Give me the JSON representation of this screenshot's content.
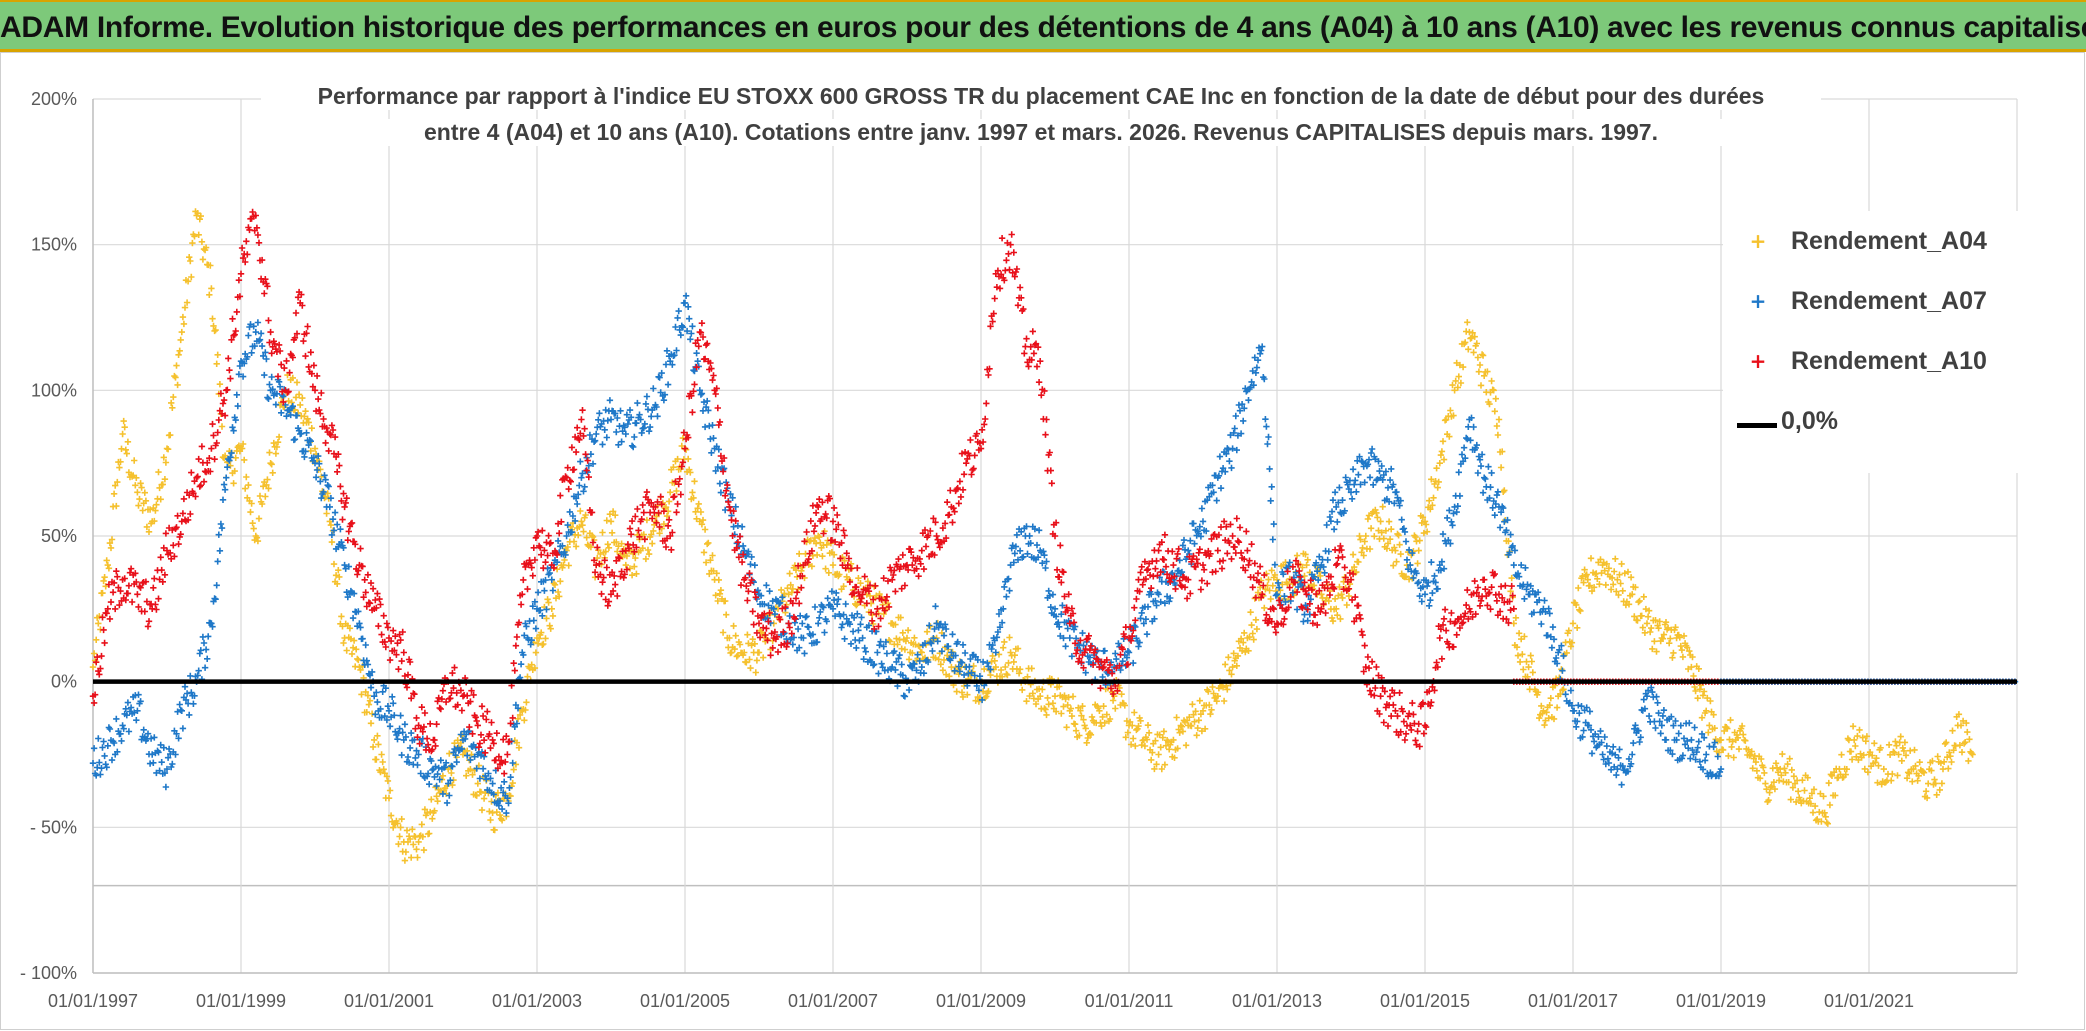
{
  "header": {
    "title": "ADAM Informe. Evolution historique des performances en euros pour des détentions de 4 ans (A04) à 10 ans (A10) avec les revenus connus capitalisés"
  },
  "colors": {
    "header_bg": "#7dc97a",
    "header_border": "#d9a300",
    "A04": "#f5c12e",
    "A07": "#1f78c8",
    "A10": "#e8101a",
    "zero_line": "#000000"
  },
  "chart_data": {
    "type": "scatter",
    "title_lines": [
      "Performance par rapport à l'indice EU STOXX 600 GROSS TR  du placement CAE Inc en fonction de la date de début pour des durées",
      "entre 4 (A04) et 10 ans (A10). Cotations entre janv. 1997 et mars. 2026. Revenus CAPITALISES depuis mars. 1997."
    ],
    "xlabel": "",
    "ylabel": "",
    "x_range": [
      1997.0,
      2023.0
    ],
    "x_ticks": [
      {
        "value": 1997,
        "label": "01/01/1997"
      },
      {
        "value": 1999,
        "label": "01/01/1999"
      },
      {
        "value": 2001,
        "label": "01/01/2001"
      },
      {
        "value": 2003,
        "label": "01/01/2003"
      },
      {
        "value": 2005,
        "label": "01/01/2005"
      },
      {
        "value": 2007,
        "label": "01/01/2007"
      },
      {
        "value": 2009,
        "label": "01/01/2009"
      },
      {
        "value": 2011,
        "label": "01/01/2011"
      },
      {
        "value": 2013,
        "label": "01/01/2013"
      },
      {
        "value": 2015,
        "label": "01/01/2015"
      },
      {
        "value": 2017,
        "label": "01/01/2017"
      },
      {
        "value": 2019,
        "label": "01/01/2019"
      },
      {
        "value": 2021,
        "label": "01/01/2021"
      }
    ],
    "y_range": [
      -100,
      200
    ],
    "y_ticks": [
      {
        "value": 200,
        "label": "200%"
      },
      {
        "value": 150,
        "label": "150%"
      },
      {
        "value": 100,
        "label": "100%"
      },
      {
        "value": 50,
        "label": "50%"
      },
      {
        "value": 0,
        "label": "0%"
      },
      {
        "value": -50,
        "label": "- 50%"
      },
      {
        "value": -100,
        "label": "- 100%"
      }
    ],
    "extra_gridline": -70,
    "grid": true,
    "legend_position": "top-right",
    "series": [
      {
        "name": "Rendement_A04",
        "color": "#f5c12e",
        "x": [
          1997.0,
          1997.2,
          1997.4,
          1997.6,
          1997.8,
          1998.0,
          1998.2,
          1998.4,
          1998.6,
          1998.8,
          1999.0,
          1999.2,
          1999.4,
          1999.6,
          1999.8,
          2000.0,
          2000.2,
          2000.4,
          2000.6,
          2000.8,
          2001.0,
          2001.2,
          2001.4,
          2001.6,
          2001.8,
          2002.0,
          2002.2,
          2002.4,
          2002.6,
          2002.8,
          2003.0,
          2003.2,
          2003.4,
          2003.6,
          2003.8,
          2004.0,
          2004.2,
          2004.4,
          2004.6,
          2004.8,
          2005.0,
          2005.2,
          2005.4,
          2005.6,
          2005.8,
          2006.0,
          2006.2,
          2006.4,
          2006.6,
          2006.8,
          2007.0,
          2007.2,
          2007.4,
          2007.6,
          2007.8,
          2008.0,
          2008.2,
          2008.4,
          2008.6,
          2008.8,
          2009.0,
          2009.2,
          2009.4,
          2009.6,
          2009.8,
          2010.0,
          2010.2,
          2010.4,
          2010.6,
          2010.8,
          2011.0,
          2011.2,
          2011.4,
          2011.6,
          2011.8,
          2012.0,
          2012.2,
          2012.4,
          2012.6,
          2012.8,
          2013.0,
          2013.2,
          2013.4,
          2013.6,
          2013.8,
          2014.0,
          2014.2,
          2014.4,
          2014.6,
          2014.8,
          2015.0,
          2015.2,
          2015.4,
          2015.6,
          2015.8,
          2016.0,
          2016.2,
          2016.4,
          2016.6,
          2016.8,
          2017.0,
          2017.2,
          2017.4,
          2017.6,
          2017.8,
          2018.0,
          2018.2,
          2018.4,
          2018.6,
          2018.8,
          2019.0,
          2019.2,
          2019.4,
          2019.6,
          2019.8,
          2020.0,
          2020.2,
          2020.4,
          2020.6,
          2020.8,
          2021.0,
          2021.2,
          2021.4,
          2021.6,
          2021.8,
          2022.0,
          2022.2,
          2022.4
        ],
        "y": [
          5,
          40,
          85,
          65,
          55,
          80,
          120,
          160,
          135,
          70,
          80,
          50,
          75,
          100,
          95,
          80,
          55,
          15,
          5,
          -20,
          -40,
          -55,
          -55,
          -45,
          -30,
          -25,
          -35,
          -45,
          -40,
          -10,
          15,
          25,
          45,
          55,
          40,
          55,
          40,
          45,
          55,
          65,
          80,
          55,
          35,
          15,
          10,
          10,
          20,
          30,
          40,
          50,
          40,
          35,
          30,
          25,
          20,
          15,
          10,
          15,
          5,
          0,
          0,
          5,
          10,
          0,
          -5,
          -5,
          -10,
          -15,
          -10,
          -5,
          -15,
          -20,
          -25,
          -20,
          -15,
          -10,
          -5,
          5,
          15,
          30,
          35,
          35,
          40,
          30,
          25,
          35,
          50,
          55,
          45,
          40,
          55,
          75,
          100,
          120,
          105,
          90,
          20,
          5,
          -10,
          -5,
          20,
          35,
          40,
          35,
          30,
          20,
          15,
          15,
          5,
          -10,
          -20,
          -20,
          -25,
          -35,
          -30,
          -35,
          -40,
          -45,
          -30,
          -20,
          -25,
          -30,
          -25,
          -30,
          -35,
          -30,
          -15,
          -25
        ],
        "spread": 7
      },
      {
        "name": "Rendement_A07",
        "color": "#1f78c8",
        "x": [
          1997.0,
          1997.2,
          1997.4,
          1997.6,
          1997.8,
          1998.0,
          1998.2,
          1998.4,
          1998.6,
          1998.8,
          1999.0,
          1999.2,
          1999.4,
          1999.6,
          1999.8,
          2000.0,
          2000.2,
          2000.4,
          2000.6,
          2000.8,
          2001.0,
          2001.2,
          2001.4,
          2001.6,
          2001.8,
          2002.0,
          2002.2,
          2002.4,
          2002.6,
          2002.8,
          2003.0,
          2003.2,
          2003.4,
          2003.6,
          2003.8,
          2004.0,
          2004.2,
          2004.4,
          2004.6,
          2004.8,
          2005.0,
          2005.2,
          2005.4,
          2005.6,
          2005.8,
          2006.0,
          2006.2,
          2006.4,
          2006.6,
          2006.8,
          2007.0,
          2007.2,
          2007.4,
          2007.6,
          2007.8,
          2008.0,
          2008.2,
          2008.4,
          2008.6,
          2008.8,
          2009.0,
          2009.2,
          2009.4,
          2009.6,
          2009.8,
          2010.0,
          2010.2,
          2010.4,
          2010.6,
          2010.8,
          2011.0,
          2011.2,
          2011.4,
          2011.6,
          2011.8,
          2012.0,
          2012.2,
          2012.4,
          2012.6,
          2012.8,
          2013.0,
          2013.2,
          2013.4,
          2013.6,
          2013.8,
          2014.0,
          2014.2,
          2014.4,
          2014.6,
          2014.8,
          2015.0,
          2015.2,
          2015.4,
          2015.6,
          2015.8,
          2016.0,
          2016.2,
          2016.4,
          2016.6,
          2016.8,
          2017.0,
          2017.2,
          2017.4,
          2017.6,
          2017.8,
          2018.0,
          2018.2,
          2018.4,
          2018.6,
          2018.8,
          2019.0
        ],
        "y": [
          -28,
          -22,
          -15,
          -10,
          -25,
          -30,
          -10,
          0,
          20,
          70,
          110,
          120,
          100,
          95,
          85,
          75,
          60,
          40,
          20,
          -5,
          -10,
          -20,
          -25,
          -30,
          -35,
          -20,
          -25,
          -35,
          -40,
          10,
          25,
          35,
          50,
          70,
          85,
          90,
          85,
          90,
          95,
          110,
          130,
          100,
          80,
          60,
          45,
          30,
          25,
          20,
          15,
          20,
          25,
          20,
          15,
          10,
          5,
          0,
          5,
          20,
          10,
          5,
          0,
          10,
          40,
          50,
          45,
          25,
          15,
          10,
          5,
          5,
          10,
          20,
          30,
          35,
          45,
          55,
          70,
          80,
          100,
          115,
          30,
          35,
          25,
          40,
          60,
          65,
          75,
          70,
          65,
          40,
          30,
          40,
          60,
          90,
          70,
          60,
          40,
          30,
          25,
          10,
          -10,
          -15,
          -25,
          -30,
          -25,
          -5,
          -15,
          -20,
          -20,
          -25,
          -30
        ],
        "spread": 7
      },
      {
        "name": "Rendement_A10",
        "color": "#e8101a",
        "x": [
          1997.0,
          1997.2,
          1997.4,
          1997.6,
          1997.8,
          1998.0,
          1998.2,
          1998.4,
          1998.6,
          1998.8,
          1999.0,
          1999.2,
          1999.4,
          1999.6,
          1999.8,
          2000.0,
          2000.2,
          2000.4,
          2000.6,
          2000.8,
          2001.0,
          2001.2,
          2001.4,
          2001.6,
          2001.8,
          2002.0,
          2002.2,
          2002.4,
          2002.6,
          2002.8,
          2003.0,
          2003.2,
          2003.4,
          2003.6,
          2003.8,
          2004.0,
          2004.2,
          2004.4,
          2004.6,
          2004.8,
          2005.0,
          2005.2,
          2005.4,
          2005.6,
          2005.8,
          2006.0,
          2006.2,
          2006.4,
          2006.6,
          2006.8,
          2007.0,
          2007.2,
          2007.4,
          2007.6,
          2007.8,
          2008.0,
          2008.2,
          2008.4,
          2008.6,
          2008.8,
          2009.0,
          2009.2,
          2009.4,
          2009.6,
          2009.8,
          2010.0,
          2010.2,
          2010.4,
          2010.6,
          2010.8,
          2011.0,
          2011.2,
          2011.4,
          2011.6,
          2011.8,
          2012.0,
          2012.2,
          2012.4,
          2012.6,
          2012.8,
          2013.0,
          2013.2,
          2013.4,
          2013.6,
          2013.8,
          2014.0,
          2014.2,
          2014.4,
          2014.6,
          2014.8,
          2015.0,
          2015.2,
          2015.4,
          2015.6,
          2015.8,
          2016.0,
          2016.2
        ],
        "y": [
          -5,
          25,
          35,
          30,
          25,
          45,
          55,
          70,
          80,
          100,
          140,
          160,
          120,
          100,
          130,
          100,
          85,
          60,
          40,
          25,
          15,
          10,
          -15,
          -20,
          0,
          -5,
          -15,
          -20,
          -25,
          30,
          50,
          40,
          70,
          90,
          40,
          30,
          45,
          55,
          60,
          50,
          80,
          120,
          100,
          60,
          35,
          20,
          15,
          20,
          40,
          60,
          55,
          40,
          30,
          25,
          35,
          40,
          45,
          50,
          60,
          75,
          80,
          140,
          150,
          115,
          110,
          50,
          20,
          10,
          5,
          0,
          15,
          35,
          45,
          40,
          35,
          40,
          45,
          50,
          45,
          30,
          20,
          35,
          30,
          25,
          40,
          35,
          5,
          -5,
          -10,
          -15,
          -15,
          15,
          20,
          25,
          35,
          30,
          25
        ],
        "spread": 8
      }
    ],
    "flat_segments": [
      {
        "series": "Rendement_A10",
        "x_start": 2016.2,
        "x_end": 2023.0,
        "y": 0
      },
      {
        "series": "Rendement_A07",
        "x_start": 2019.0,
        "x_end": 2023.0,
        "y": 0
      }
    ],
    "reference_line": {
      "name": "0,0%",
      "y": 0,
      "color": "#000000"
    }
  },
  "legend": {
    "items": [
      {
        "label": "Rendement_A04",
        "marker": "+",
        "color": "#f5c12e"
      },
      {
        "label": "Rendement_A07",
        "marker": "+",
        "color": "#1f78c8"
      },
      {
        "label": "Rendement_A10",
        "marker": "+",
        "color": "#e8101a"
      },
      {
        "label": "0,0%",
        "marker": "line",
        "color": "#000000"
      }
    ]
  }
}
